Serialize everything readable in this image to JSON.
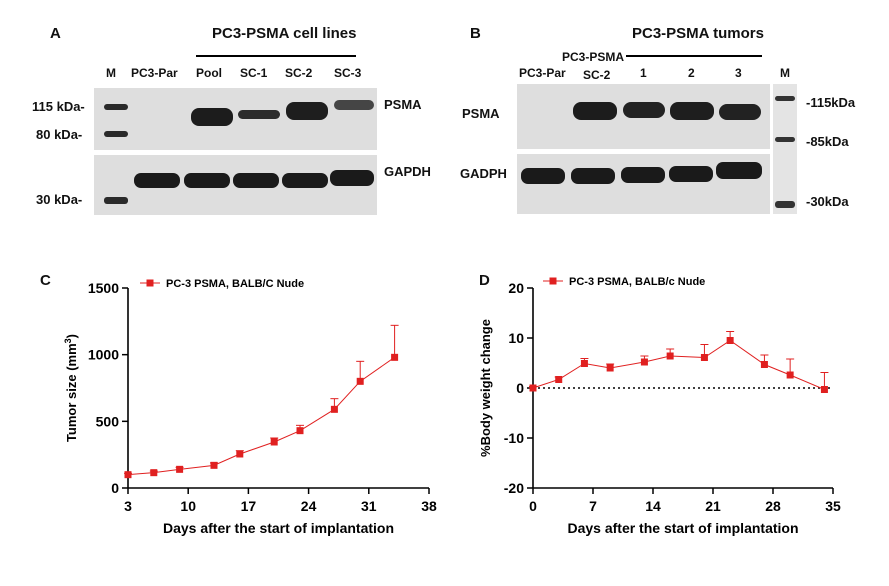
{
  "panelA": {
    "letter": "A",
    "header": "PC3-PSMA cell lines",
    "lanes": [
      "M",
      "PC3-Par",
      "Pool",
      "SC-1",
      "SC-2",
      "SC-3"
    ],
    "markers": [
      "115 kDa-",
      "80 kDa-",
      "30 kDa-"
    ],
    "proteins": [
      "PSMA",
      "GAPDH"
    ]
  },
  "panelB": {
    "letter": "B",
    "header": "PC3-PSMA tumors",
    "group_label": "PC3-PSMA",
    "lanes": [
      "PC3-Par",
      "SC-2",
      "1",
      "2",
      "3",
      "M"
    ],
    "markers": [
      "-115kDa",
      "-85kDa",
      "-30kDa"
    ],
    "proteins": [
      "PSMA",
      "GADPH"
    ]
  },
  "chart_data": [
    {
      "type": "line",
      "panel": "C",
      "legend": "PC-3 PSMA, BALB/C Nude",
      "xlabel": "Days after the start of implantation",
      "ylabel_main": "Tumor size  (mm",
      "ylabel_sup": "3",
      "ylabel_end": ")",
      "xticks": [
        3,
        10,
        17,
        24,
        31,
        38
      ],
      "yticks": [
        0,
        500,
        1000,
        1500
      ],
      "xlim": [
        3,
        38
      ],
      "ylim": [
        0,
        1500
      ],
      "x": [
        3,
        6,
        9,
        13,
        16,
        20,
        23,
        27,
        30,
        34
      ],
      "y": [
        100,
        115,
        140,
        170,
        255,
        345,
        430,
        590,
        800,
        980
      ],
      "err": [
        10,
        12,
        15,
        18,
        25,
        30,
        40,
        80,
        150,
        240
      ],
      "color": "#e02020"
    },
    {
      "type": "line",
      "panel": "D",
      "legend": "PC-3 PSMA, BALB/c Nude",
      "xlabel": "Days after the start of implantation",
      "ylabel": "%Body weight change",
      "xticks": [
        0,
        7,
        14,
        21,
        28,
        35
      ],
      "yticks": [
        -20,
        -10,
        0,
        10,
        20
      ],
      "xlim": [
        0,
        35
      ],
      "ylim": [
        -20,
        20
      ],
      "x": [
        0,
        3,
        6,
        9,
        13,
        16,
        20,
        23,
        27,
        30,
        34
      ],
      "y": [
        0,
        1.7,
        4.9,
        4.0,
        5.2,
        6.4,
        6.1,
        9.5,
        4.7,
        2.6,
        -0.3
      ],
      "err": [
        0.3,
        0.5,
        1.0,
        0.8,
        1.2,
        1.4,
        2.6,
        1.8,
        1.9,
        3.2,
        3.4
      ],
      "zero_line": "dotted",
      "color": "#e02020"
    }
  ]
}
